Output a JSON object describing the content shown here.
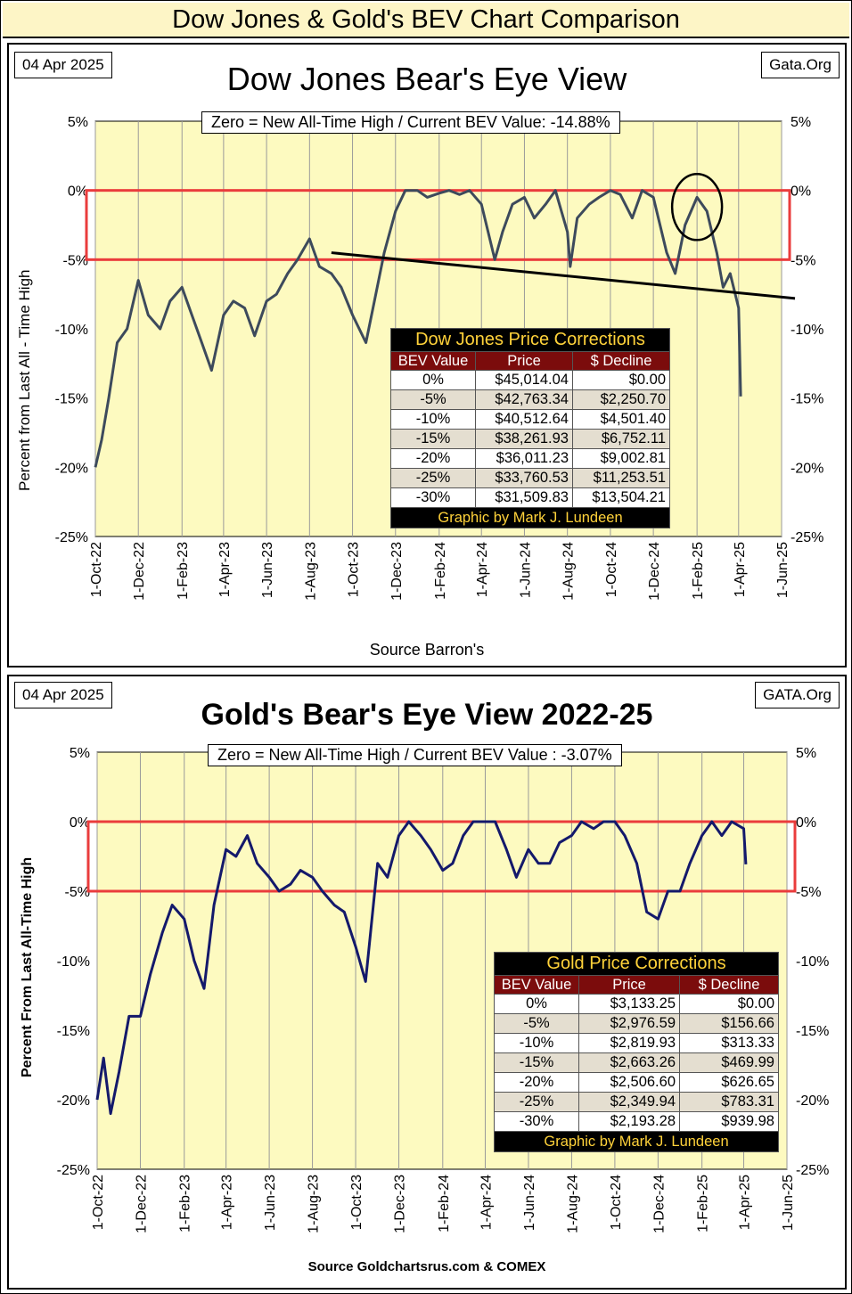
{
  "header": {
    "title": "Dow Jones & Gold's BEV Chart Comparison"
  },
  "dow": {
    "date": "04 Apr 2025",
    "source_tag": "Gata.Org",
    "title": "Dow Jones Bear's Eye View",
    "zero_label": "Zero = New All-Time High / Current BEV Value:  -14.88%",
    "ylabel": "Percent  from  Last  All - Time  High",
    "source": "Source Barron's",
    "table": {
      "title": "Dow Jones Price Corrections",
      "headers": [
        "BEV Value",
        "Price",
        "$ Decline"
      ],
      "rows": [
        [
          "0%",
          "$45,014.04",
          "$0.00"
        ],
        [
          "-5%",
          "$42,763.34",
          "$2,250.70"
        ],
        [
          "-10%",
          "$40,512.64",
          "$4,501.40"
        ],
        [
          "-15%",
          "$38,261.93",
          "$6,752.11"
        ],
        [
          "-20%",
          "$36,011.23",
          "$9,002.81"
        ],
        [
          "-25%",
          "$33,760.53",
          "$11,253.51"
        ],
        [
          "-30%",
          "$31,509.83",
          "$13,504.21"
        ]
      ],
      "footer": "Graphic by Mark J. Lundeen"
    }
  },
  "gold": {
    "date": "04 Apr 2025",
    "source_tag": "GATA.Org",
    "title": "Gold's Bear's Eye View 2022-25",
    "zero_label": "Zero = New All-Time High / Current  BEV Value : -3.07%",
    "ylabel": "Percent  From Last  All-Time  High",
    "source": "Source Goldchartsrus.com & COMEX",
    "table": {
      "title": "Gold Price Corrections",
      "headers": [
        "BEV Value",
        "Price",
        "$ Decline"
      ],
      "rows": [
        [
          "0%",
          "$3,133.25",
          "$0.00"
        ],
        [
          "-5%",
          "$2,976.59",
          "$156.66"
        ],
        [
          "-10%",
          "$2,819.93",
          "$313.33"
        ],
        [
          "-15%",
          "$2,663.26",
          "$469.99"
        ],
        [
          "-20%",
          "$2,506.60",
          "$626.65"
        ],
        [
          "-25%",
          "$2,349.94",
          "$783.31"
        ],
        [
          "-30%",
          "$2,193.28",
          "$939.98"
        ]
      ],
      "footer": "Graphic by Mark J. Lundeen"
    }
  },
  "chart_data": [
    {
      "type": "line",
      "title": "Dow Jones Bear's Eye View",
      "xlabel": "",
      "ylabel": "Percent  from  Last  All - Time  High",
      "x_tick_labels": [
        "1-Oct-22",
        "1-Dec-22",
        "1-Feb-23",
        "1-Apr-23",
        "1-Jun-23",
        "1-Aug-23",
        "1-Oct-23",
        "1-Dec-23",
        "1-Feb-24",
        "1-Apr-24",
        "1-Jun-24",
        "1-Aug-24",
        "1-Oct-24",
        "1-Dec-24",
        "1-Feb-25",
        "1-Apr-25",
        "1-Jun-25"
      ],
      "y_tick_labels": [
        "5%",
        "0%",
        "-5%",
        "-10%",
        "-15%",
        "-20%",
        "-25%"
      ],
      "ylim": [
        -25,
        5
      ],
      "grid": true,
      "line_color": "#3d4a5c",
      "series": [
        {
          "x": [
            "2022-10-01",
            "2022-10-10",
            "2022-10-20",
            "2022-11-01",
            "2022-11-15",
            "2022-12-01",
            "2022-12-15",
            "2023-01-01",
            "2023-01-15",
            "2023-02-01",
            "2023-02-15",
            "2023-03-01",
            "2023-03-15",
            "2023-04-01",
            "2023-04-15",
            "2023-05-01",
            "2023-05-15",
            "2023-06-01",
            "2023-06-15",
            "2023-07-01",
            "2023-07-15",
            "2023-08-01",
            "2023-08-15",
            "2023-09-01",
            "2023-09-15",
            "2023-10-01",
            "2023-10-20",
            "2023-11-01",
            "2023-11-15",
            "2023-12-01",
            "2023-12-15",
            "2024-01-01",
            "2024-01-15",
            "2024-02-01",
            "2024-02-15",
            "2024-03-01",
            "2024-03-15",
            "2024-04-01",
            "2024-04-20",
            "2024-05-01",
            "2024-05-15",
            "2024-06-01",
            "2024-06-15",
            "2024-07-01",
            "2024-07-15",
            "2024-08-01",
            "2024-08-05",
            "2024-08-15",
            "2024-09-01",
            "2024-09-15",
            "2024-10-01",
            "2024-10-15",
            "2024-11-01",
            "2024-11-15",
            "2024-12-01",
            "2024-12-20",
            "2025-01-01",
            "2025-01-15",
            "2025-02-01",
            "2025-02-15",
            "2025-03-01",
            "2025-03-10",
            "2025-03-20",
            "2025-04-01",
            "2025-04-04"
          ],
          "values": [
            -20,
            -18,
            -15,
            -11,
            -10,
            -6.5,
            -9,
            -10,
            -8,
            -7,
            -9,
            -11,
            -13,
            -9,
            -8,
            -8.5,
            -10.5,
            -8,
            -7.5,
            -6,
            -5,
            -3.5,
            -5.5,
            -6,
            -7,
            -9,
            -11,
            -8,
            -4.5,
            -1.5,
            0,
            0,
            -0.5,
            -0.2,
            0,
            -0.3,
            0,
            -1,
            -5,
            -3,
            -1,
            -0.5,
            -2,
            -1,
            0,
            -3,
            -5.5,
            -2,
            -1,
            -0.5,
            0,
            -0.3,
            -2,
            0,
            -0.5,
            -4.5,
            -6,
            -2.5,
            -0.5,
            -1.5,
            -4.5,
            -7,
            -6,
            -8.5,
            -14.88
          ]
        }
      ]
    },
    {
      "type": "line",
      "title": "Gold's Bear's Eye View 2022-25",
      "xlabel": "",
      "ylabel": "Percent  From Last  All-Time  High",
      "x_tick_labels": [
        "1-Oct-22",
        "1-Dec-22",
        "1-Feb-23",
        "1-Apr-23",
        "1-Jun-23",
        "1-Aug-23",
        "1-Oct-23",
        "1-Dec-23",
        "1-Feb-24",
        "1-Apr-24",
        "1-Jun-24",
        "1-Aug-24",
        "1-Oct-24",
        "1-Dec-24",
        "1-Feb-25",
        "1-Apr-25",
        "1-Jun-25"
      ],
      "y_tick_labels": [
        "5%",
        "0%",
        "-5%",
        "-10%",
        "-15%",
        "-20%",
        "-25%"
      ],
      "ylim": [
        -25,
        5
      ],
      "grid": true,
      "line_color": "#14196b",
      "series": [
        {
          "x": [
            "2022-10-01",
            "2022-10-10",
            "2022-10-20",
            "2022-11-01",
            "2022-11-15",
            "2022-12-01",
            "2022-12-15",
            "2023-01-01",
            "2023-01-15",
            "2023-02-01",
            "2023-02-15",
            "2023-03-01",
            "2023-03-15",
            "2023-04-01",
            "2023-04-15",
            "2023-05-01",
            "2023-05-15",
            "2023-06-01",
            "2023-06-15",
            "2023-07-01",
            "2023-07-15",
            "2023-08-01",
            "2023-08-15",
            "2023-09-01",
            "2023-09-15",
            "2023-10-01",
            "2023-10-15",
            "2023-11-01",
            "2023-11-15",
            "2023-12-01",
            "2023-12-15",
            "2024-01-01",
            "2024-01-15",
            "2024-02-01",
            "2024-02-15",
            "2024-03-01",
            "2024-03-15",
            "2024-04-01",
            "2024-04-15",
            "2024-05-01",
            "2024-05-15",
            "2024-06-01",
            "2024-06-15",
            "2024-07-01",
            "2024-07-15",
            "2024-08-01",
            "2024-08-15",
            "2024-09-01",
            "2024-09-15",
            "2024-10-01",
            "2024-10-15",
            "2024-11-01",
            "2024-11-15",
            "2024-12-01",
            "2024-12-15",
            "2025-01-01",
            "2025-01-15",
            "2025-02-01",
            "2025-02-15",
            "2025-03-01",
            "2025-03-15",
            "2025-04-01",
            "2025-04-04"
          ],
          "values": [
            -20,
            -17,
            -21,
            -18,
            -14,
            -14,
            -11,
            -8,
            -6,
            -7,
            -10,
            -12,
            -6,
            -2,
            -2.5,
            -1,
            -3,
            -4,
            -5,
            -4.5,
            -3.5,
            -4,
            -5,
            -6,
            -6.5,
            -9,
            -11.5,
            -3,
            -4,
            -1,
            0,
            -1,
            -2,
            -3.5,
            -3,
            -1,
            0,
            0,
            0,
            -2,
            -4,
            -2,
            -3,
            -3,
            -1.5,
            -1,
            0,
            -0.5,
            0,
            0,
            -1,
            -3,
            -6.5,
            -7,
            -5,
            -5,
            -3,
            -1,
            0,
            -1,
            0,
            -0.5,
            -3.07
          ]
        }
      ]
    }
  ]
}
